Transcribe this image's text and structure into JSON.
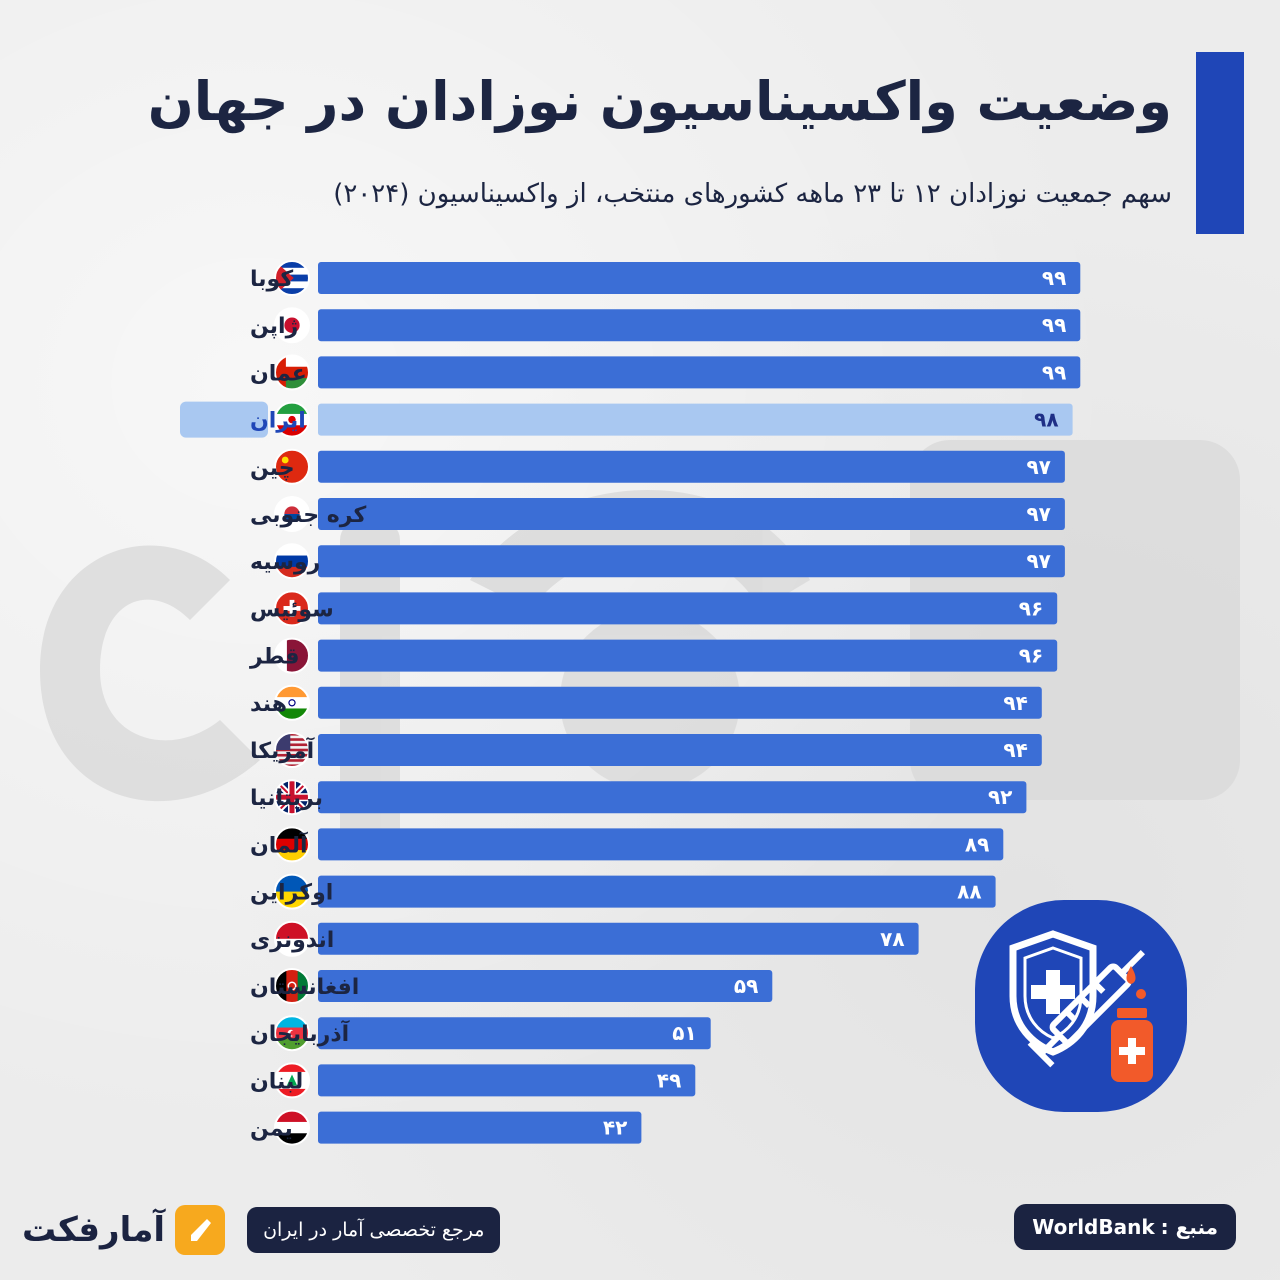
{
  "title": "وضعیت واکسیناسیون نوزادان در جهان",
  "subtitle": "سهم جمعیت نوزادان ۱۲ تا ۲۳ ماهه کشورهای منتخب، از واکسیناسیون (۲۰۲۴)",
  "highlight_color": "#a9c8f1",
  "bar_color": "#3b6ed6",
  "chart_data": {
    "type": "bar",
    "orientation": "horizontal",
    "title": "وضعیت واکسیناسیون نوزادان در جهان",
    "highlight": "ایران",
    "categories": [
      "کوبا",
      "ژاپن",
      "عمان",
      "ایران",
      "چین",
      "کره جنوبی",
      "روسیه",
      "سوئیس",
      "قطر",
      "هند",
      "آمریکا",
      "بریتانیا",
      "آلمان",
      "اوکراین",
      "اندونزی",
      "افغانستان",
      "آذربایجان",
      "لبنان",
      "یمن"
    ],
    "values": [
      99,
      99,
      99,
      98,
      97,
      97,
      97,
      96,
      96,
      94,
      94,
      92,
      89,
      88,
      78,
      59,
      51,
      49,
      42
    ],
    "value_labels": [
      "۹۹",
      "۹۹",
      "۹۹",
      "۹۸",
      "۹۷",
      "۹۷",
      "۹۷",
      "۹۶",
      "۹۶",
      "۹۴",
      "۹۴",
      "۹۲",
      "۸۹",
      "۸۸",
      "۷۸",
      "۵۹",
      "۵۱",
      "۴۹",
      "۴۲"
    ],
    "flag_icons": [
      "cuba-flag-icon",
      "japan-flag-icon",
      "oman-flag-icon",
      "iran-flag-icon",
      "china-flag-icon",
      "south-korea-flag-icon",
      "russia-flag-icon",
      "switzerland-flag-icon",
      "qatar-flag-icon",
      "india-flag-icon",
      "usa-flag-icon",
      "uk-flag-icon",
      "germany-flag-icon",
      "ukraine-flag-icon",
      "indonesia-flag-icon",
      "afghanistan-flag-icon",
      "azerbaijan-flag-icon",
      "lebanon-flag-icon",
      "yemen-flag-icon"
    ],
    "xlim": [
      0,
      100
    ]
  },
  "source": {
    "label": "منبع :",
    "name": "WorldBank"
  },
  "brand": {
    "name": "آمارفکت",
    "tagline": "مرجع تخصصی آمار در ایران",
    "accent_color": "#f7a91e"
  },
  "badge_icon": "vaccine-shield-syringe-icon"
}
